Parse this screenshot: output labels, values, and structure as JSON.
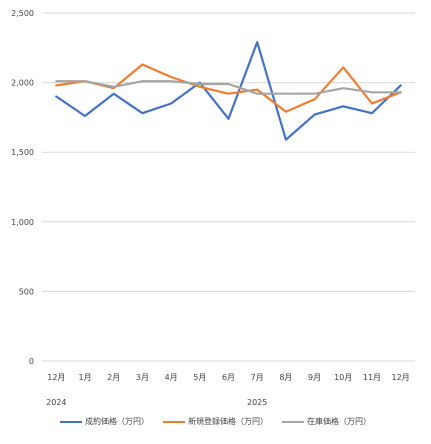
{
  "chart_data": {
    "type": "line",
    "categories": [
      "12月",
      "1月",
      "2月",
      "3月",
      "4月",
      "5月",
      "6月",
      "7月",
      "8月",
      "9月",
      "10月",
      "11月",
      "12月"
    ],
    "year_labels": [
      {
        "index": 0,
        "label": "2024"
      },
      {
        "index": 7,
        "label": "2025"
      }
    ],
    "yticks": [
      "0",
      "500",
      "1,000",
      "1,500",
      "2,000",
      "2,500"
    ],
    "ylim": [
      0,
      2500
    ],
    "grid": true,
    "legend_position": "bottom",
    "series": [
      {
        "name": "成約価格（万円）",
        "color": "#4472c4",
        "values": [
          1900,
          1760,
          1920,
          1780,
          1850,
          2000,
          1740,
          2290,
          1590,
          1770,
          1830,
          1780,
          1980
        ]
      },
      {
        "name": "新規登録価格（万円）",
        "color": "#ed7d31",
        "values": [
          1980,
          2010,
          1960,
          2130,
          2040,
          1970,
          1920,
          1950,
          1790,
          1880,
          2110,
          1850,
          1930
        ]
      },
      {
        "name": "在庫価格（万円）",
        "color": "#a5a5a5",
        "values": [
          2010,
          2010,
          1970,
          2010,
          2010,
          1990,
          1990,
          1920,
          1920,
          1920,
          1960,
          1930,
          1930
        ]
      }
    ]
  }
}
